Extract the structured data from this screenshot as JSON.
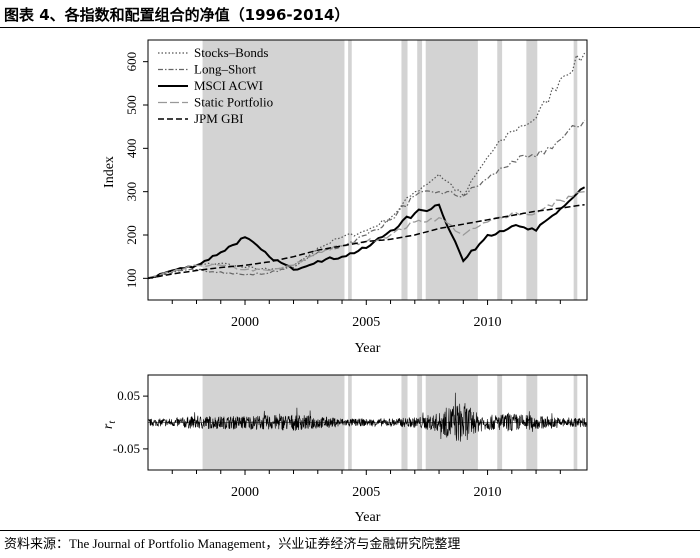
{
  "header": {
    "title": "图表 4、各指数和配置组合的净值（1996-2014）"
  },
  "footer": {
    "source": "资料来源：The Journal of Portfolio Management，兴业证券经济与金融研究院整理"
  },
  "colors": {
    "shade": "#d3d3d3",
    "line": "#000000",
    "stocks_bonds": "#555555",
    "long_short": "#666666",
    "static": "#999999"
  },
  "chart_data": [
    {
      "type": "line",
      "title": "",
      "xlabel": "Year",
      "ylabel": "Index",
      "xlim": [
        1996,
        2014.1
      ],
      "ylim": [
        50,
        650
      ],
      "xticks": [
        2000,
        2005,
        2010
      ],
      "yticks": [
        100,
        200,
        300,
        400,
        500,
        600
      ],
      "grid": false,
      "legend_position": "top-left",
      "shaded_periods": [
        [
          1998.25,
          2004.1
        ],
        [
          2004.25,
          2004.4
        ],
        [
          2006.45,
          2006.7
        ],
        [
          2007.1,
          2007.3
        ],
        [
          2007.45,
          2009.6
        ],
        [
          2010.4,
          2010.6
        ],
        [
          2011.6,
          2012.05
        ],
        [
          2013.55,
          2013.7
        ]
      ],
      "x": [
        1996,
        1997,
        1998,
        1999,
        2000,
        2001,
        2002,
        2003,
        2004,
        2005,
        2006,
        2007,
        2008,
        2009,
        2010,
        2011,
        2012,
        2013,
        2014
      ],
      "series": [
        {
          "name": "Stocks–Bonds",
          "style": "dotted",
          "values": [
            100,
            115,
            130,
            135,
            125,
            120,
            125,
            170,
            195,
            210,
            240,
            300,
            340,
            290,
            380,
            440,
            470,
            560,
            620
          ]
        },
        {
          "name": "Long–Short",
          "style": "dashdot",
          "values": [
            100,
            113,
            120,
            115,
            108,
            112,
            130,
            160,
            175,
            200,
            235,
            290,
            300,
            290,
            330,
            370,
            380,
            420,
            465
          ]
        },
        {
          "name": "MSCI ACWI",
          "style": "solid",
          "values": [
            100,
            118,
            130,
            160,
            195,
            150,
            120,
            140,
            150,
            170,
            210,
            250,
            270,
            140,
            200,
            220,
            210,
            260,
            310
          ]
        },
        {
          "name": "Static Portfolio",
          "style": "longdash",
          "values": [
            100,
            115,
            130,
            130,
            120,
            118,
            130,
            160,
            175,
            185,
            200,
            230,
            240,
            200,
            230,
            250,
            250,
            280,
            300
          ]
        },
        {
          "name": "JPM GBI",
          "style": "dashed",
          "values": [
            100,
            110,
            118,
            125,
            130,
            138,
            150,
            165,
            175,
            185,
            190,
            200,
            215,
            225,
            235,
            245,
            255,
            262,
            270
          ]
        }
      ]
    },
    {
      "type": "line",
      "title": "",
      "xlabel": "Year",
      "ylabel": "r_t",
      "xlim": [
        1996,
        2014.1
      ],
      "ylim": [
        -0.09,
        0.09
      ],
      "xticks": [
        2000,
        2005,
        2010
      ],
      "yticks": [
        -0.05,
        0.05
      ],
      "ytick_labels": [
        "-0.05",
        "0.05"
      ],
      "grid": false,
      "shaded_periods": [
        [
          1998.25,
          2004.1
        ],
        [
          2004.25,
          2004.4
        ],
        [
          2006.45,
          2006.7
        ],
        [
          2007.1,
          2007.3
        ],
        [
          2007.45,
          2009.6
        ],
        [
          2010.4,
          2010.6
        ],
        [
          2011.6,
          2012.05
        ],
        [
          2013.55,
          2013.7
        ]
      ],
      "volatility": {
        "x": [
          1996,
          1997,
          1998,
          1999,
          2000,
          2001,
          2002,
          2003,
          2004,
          2005,
          2006,
          2007,
          2008,
          2008.5,
          2009,
          2009.5,
          2010,
          2011,
          2012,
          2013,
          2014
        ],
        "amplitude": [
          0.007,
          0.008,
          0.013,
          0.012,
          0.013,
          0.014,
          0.016,
          0.012,
          0.008,
          0.007,
          0.008,
          0.01,
          0.018,
          0.035,
          0.04,
          0.02,
          0.014,
          0.018,
          0.013,
          0.01,
          0.009
        ]
      }
    }
  ]
}
